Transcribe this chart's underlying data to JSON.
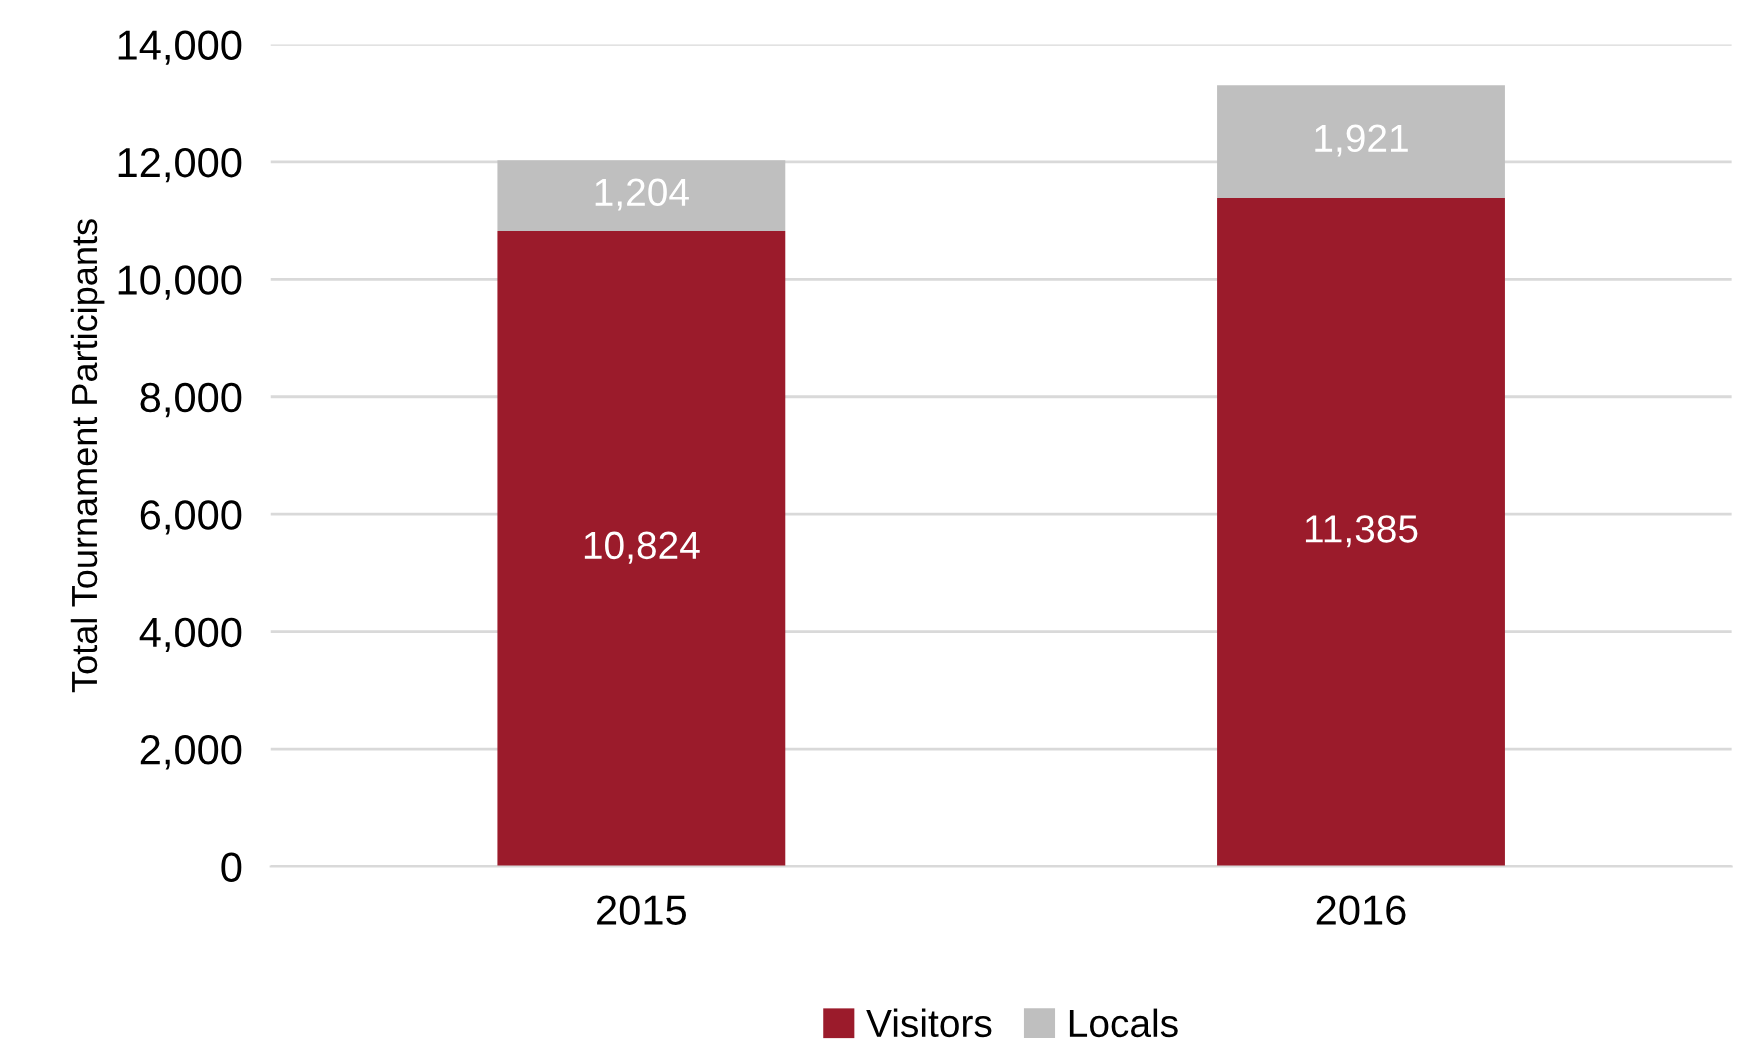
{
  "chart_data": {
    "type": "bar",
    "stacked": true,
    "ylabel": "Total Tournament Participants",
    "categories": [
      "2015",
      "2016"
    ],
    "series": [
      {
        "name": "Visitors",
        "color": "#9b1b2b",
        "values": [
          10824,
          11385
        ],
        "value_labels": [
          "10,824",
          "11,385"
        ]
      },
      {
        "name": "Locals",
        "color": "#bfbfbf",
        "values": [
          1204,
          1921
        ],
        "value_labels": [
          "1,204",
          "1,921"
        ]
      }
    ],
    "ylim": [
      0,
      14000
    ],
    "yticks": [
      0,
      {
        "value": 2000,
        "label": "2,000"
      },
      {
        "value": 4000,
        "label": "4,000"
      },
      {
        "value": 6000,
        "label": "6,000"
      },
      {
        "value": 8000,
        "label": "8,000"
      },
      {
        "value": 10000,
        "label": "10,000"
      },
      {
        "value": 12000,
        "label": "12,000"
      },
      {
        "value": 14000,
        "label": "14,000"
      }
    ],
    "grid": "y",
    "legend": "bottom"
  }
}
